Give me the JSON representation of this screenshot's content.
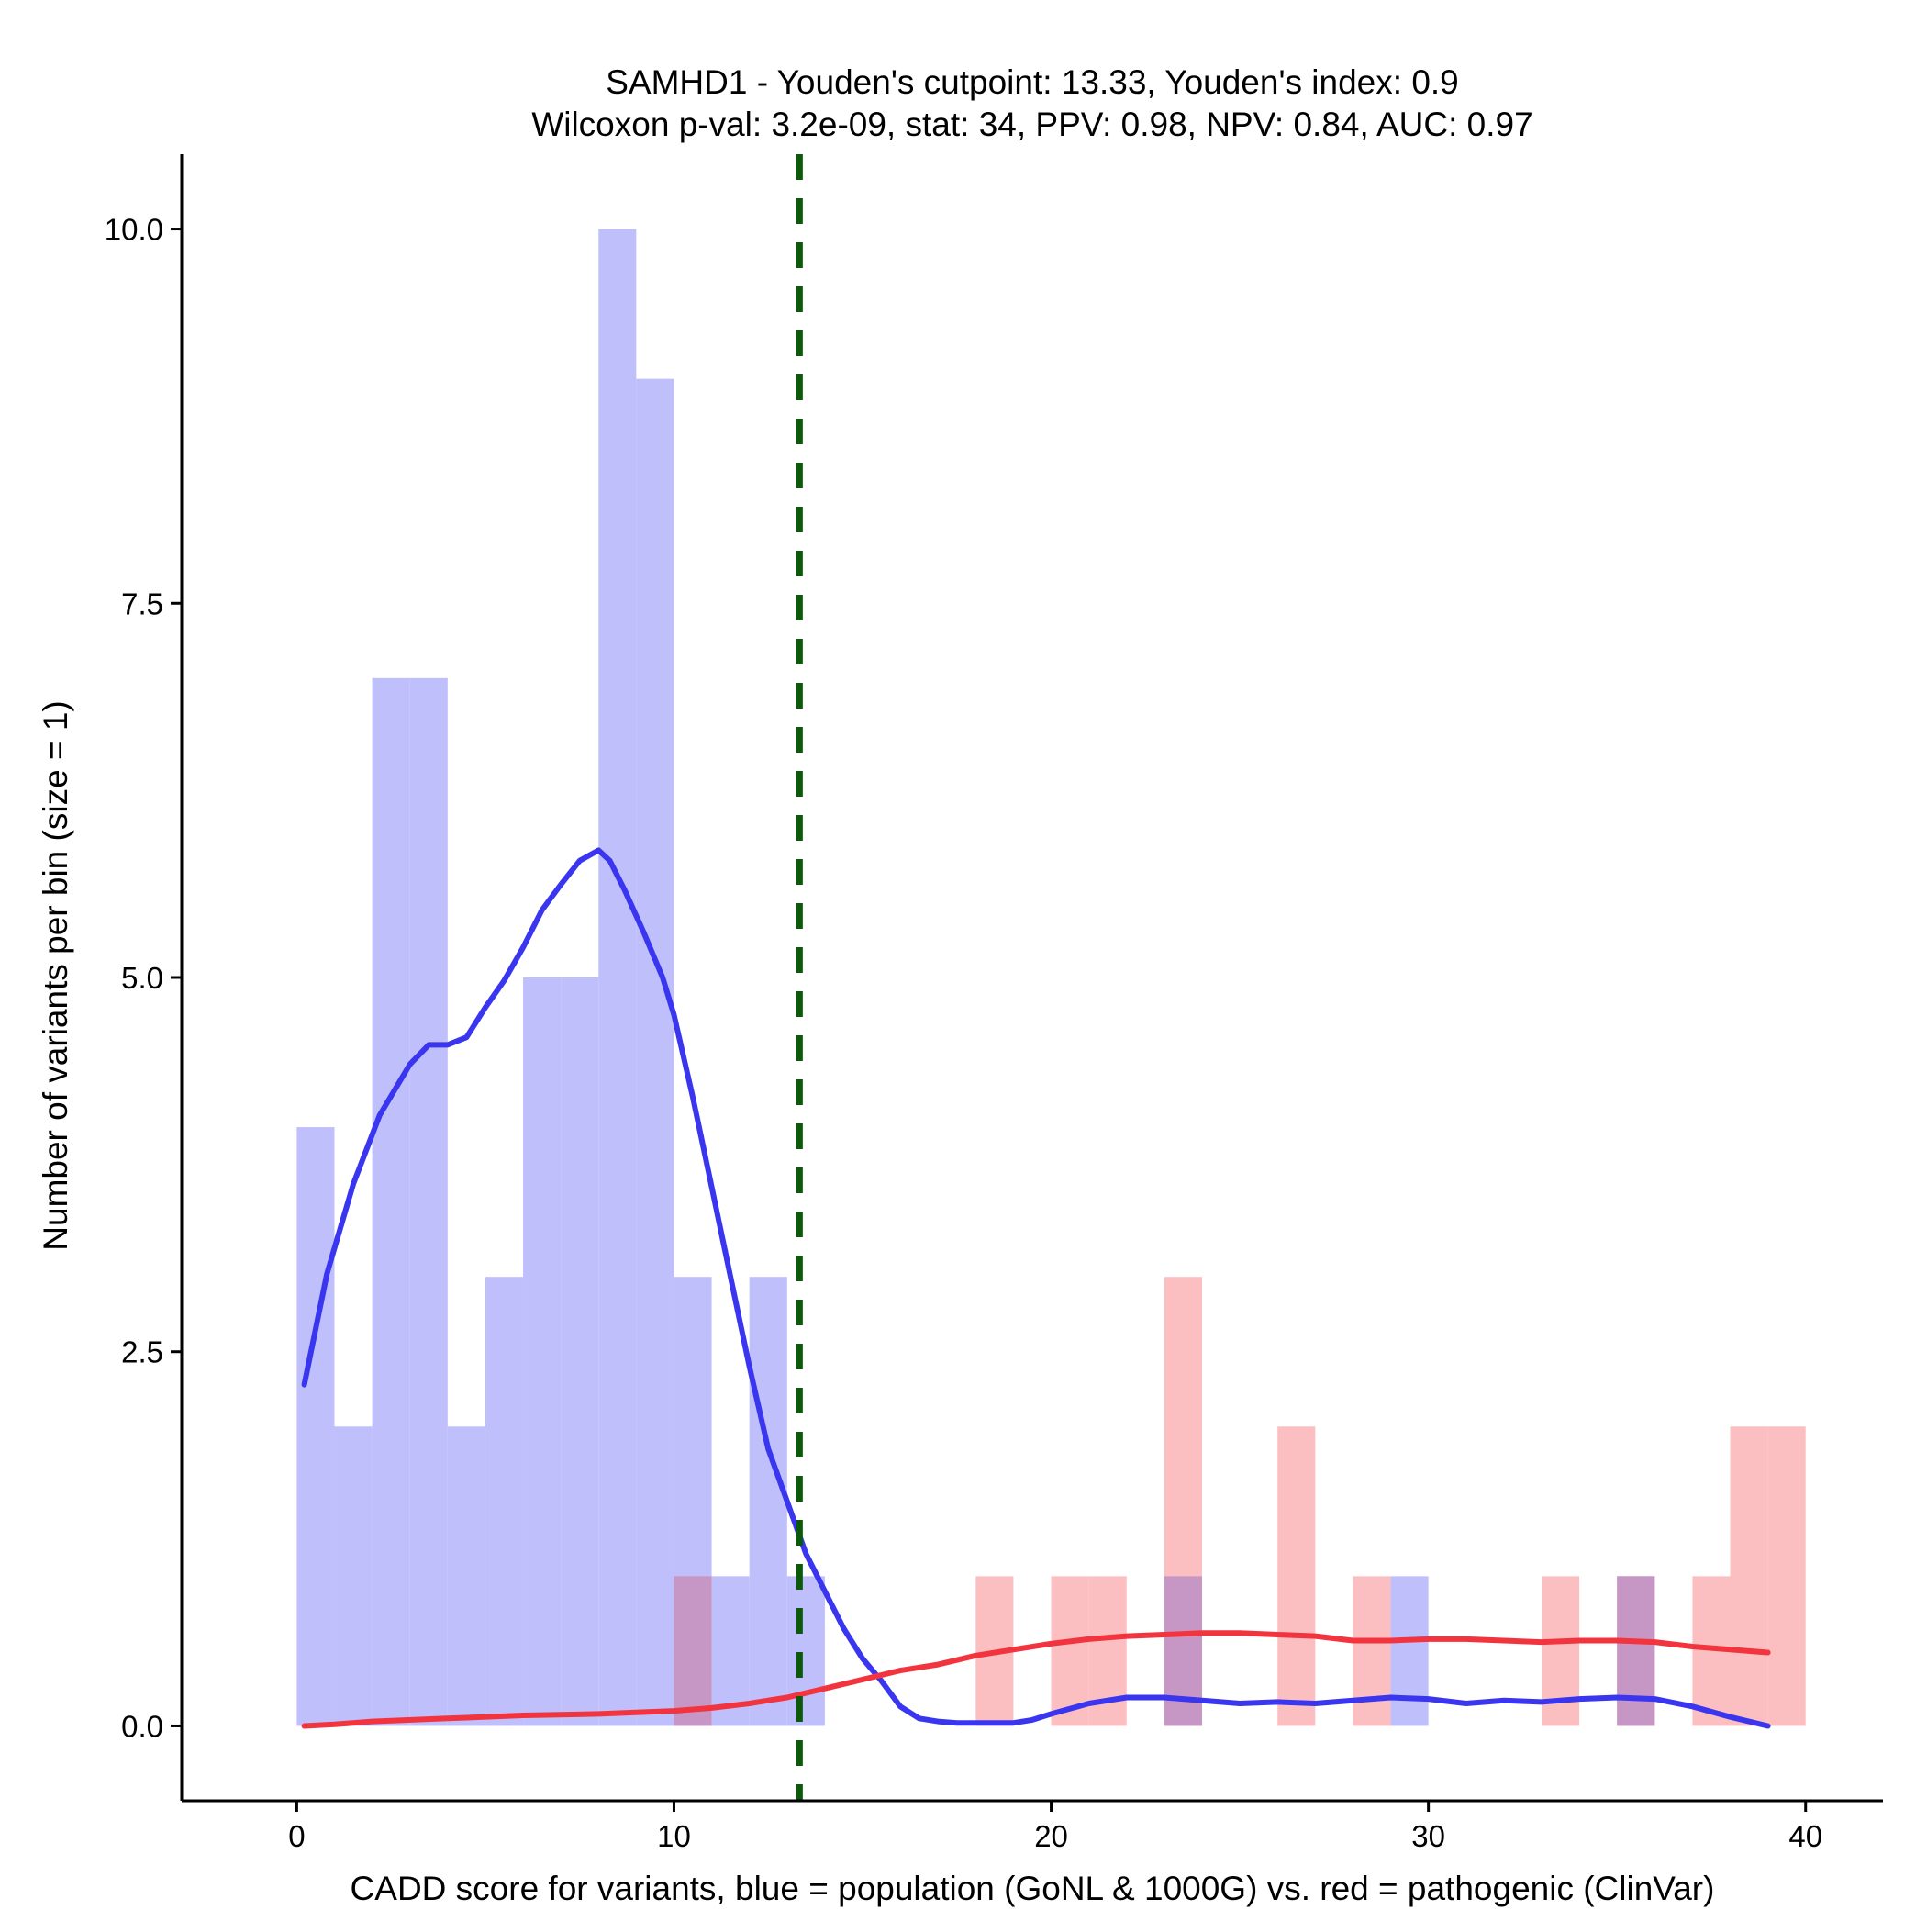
{
  "chart_data": {
    "type": "histogram",
    "title": "SAMHD1 - Youden's cutpoint: 13.33, Youden's index: 0.9",
    "subtitle": "Wilcoxon p-val: 3.2e-09, stat: 34, PPV: 0.98, NPV: 0.84, AUC: 0.97",
    "xlabel": "CADD score for variants, blue = population (GoNL & 1000G) vs. red = pathogenic (ClinVar)",
    "ylabel": "Number of variants per bin (size = 1)",
    "xlim": [
      -3.05,
      42.05
    ],
    "ylim": [
      -0.5,
      10.5
    ],
    "x_ticks": [
      0,
      10,
      20,
      30,
      40
    ],
    "x_tick_labels": [
      "0",
      "10",
      "20",
      "30",
      "40"
    ],
    "y_ticks": [
      0,
      2.5,
      5,
      7.5,
      10
    ],
    "y_tick_labels": [
      "0.0",
      "2.5",
      "5.0",
      "7.5",
      "10.0"
    ],
    "bin_width": 1,
    "cutpoint": 13.33,
    "colors": {
      "population_fill": "#bfbffc",
      "pathogenic_fill": "#fcbfc1",
      "overlap_fill": "#c696c4",
      "population_line": "#3a35ef",
      "pathogenic_line": "#f2343e",
      "cutpoint_line": "#0a5a0a",
      "axis": "#000000"
    },
    "series": [
      {
        "name": "population (GoNL & 1000G)",
        "bins": [
          {
            "start": 0,
            "count": 4
          },
          {
            "start": 1,
            "count": 2
          },
          {
            "start": 2,
            "count": 7
          },
          {
            "start": 3,
            "count": 7
          },
          {
            "start": 4,
            "count": 2
          },
          {
            "start": 5,
            "count": 3
          },
          {
            "start": 6,
            "count": 5
          },
          {
            "start": 7,
            "count": 5
          },
          {
            "start": 8,
            "count": 10
          },
          {
            "start": 9,
            "count": 9
          },
          {
            "start": 10,
            "count": 3
          },
          {
            "start": 11,
            "count": 1
          },
          {
            "start": 12,
            "count": 3
          },
          {
            "start": 13,
            "count": 1
          },
          {
            "start": 23,
            "count": 1
          },
          {
            "start": 29,
            "count": 1
          },
          {
            "start": 35,
            "count": 1
          }
        ],
        "density_scaled": {
          "x": [
            0.2,
            0.8,
            1.5,
            2.2,
            3.0,
            3.5,
            4.0,
            4.5,
            5.0,
            5.5,
            6.0,
            6.5,
            7.0,
            7.5,
            8.0,
            8.3,
            8.7,
            9.2,
            9.7,
            10.0,
            10.5,
            11.0,
            11.5,
            12.0,
            12.5,
            13.0,
            13.5,
            14.0,
            14.5,
            15.0,
            15.5,
            16.0,
            16.5,
            17.0,
            17.5,
            18.0,
            18.5,
            19.0,
            19.5,
            20.0,
            21.0,
            22.0,
            23.0,
            24.0,
            25.0,
            26.0,
            27.0,
            28.0,
            29.0,
            30.0,
            31.0,
            32.0,
            33.0,
            34.0,
            35.0,
            36.0,
            37.0,
            38.0,
            39.0
          ],
          "y": [
            2.28,
            3.02,
            3.62,
            4.08,
            4.42,
            4.55,
            4.55,
            4.6,
            4.8,
            4.98,
            5.2,
            5.45,
            5.62,
            5.78,
            5.85,
            5.78,
            5.58,
            5.3,
            5.0,
            4.75,
            4.2,
            3.6,
            3.0,
            2.4,
            1.85,
            1.5,
            1.15,
            0.9,
            0.65,
            0.45,
            0.3,
            0.13,
            0.05,
            0.03,
            0.02,
            0.02,
            0.02,
            0.02,
            0.04,
            0.08,
            0.15,
            0.19,
            0.19,
            0.17,
            0.15,
            0.16,
            0.15,
            0.17,
            0.19,
            0.18,
            0.15,
            0.17,
            0.16,
            0.18,
            0.19,
            0.18,
            0.13,
            0.06,
            0.0
          ]
        }
      },
      {
        "name": "pathogenic (ClinVar)",
        "bins": [
          {
            "start": 10,
            "count": 1
          },
          {
            "start": 18,
            "count": 1
          },
          {
            "start": 20,
            "count": 1
          },
          {
            "start": 21,
            "count": 1
          },
          {
            "start": 23,
            "count": 3
          },
          {
            "start": 26,
            "count": 2
          },
          {
            "start": 28,
            "count": 1
          },
          {
            "start": 33,
            "count": 1
          },
          {
            "start": 35,
            "count": 1
          },
          {
            "start": 37,
            "count": 1
          },
          {
            "start": 38,
            "count": 2
          },
          {
            "start": 39,
            "count": 2
          }
        ],
        "density_scaled": {
          "x": [
            0.2,
            1.0,
            2.0,
            4.0,
            6.0,
            8.0,
            9.0,
            10.0,
            11.0,
            12.0,
            12.5,
            13.0,
            13.5,
            14.0,
            14.5,
            15.0,
            15.5,
            16.0,
            16.5,
            17.0,
            17.5,
            18.0,
            19.0,
            20.0,
            21.0,
            22.0,
            23.0,
            24.0,
            25.0,
            26.0,
            27.0,
            28.0,
            29.0,
            30.0,
            31.0,
            32.0,
            33.0,
            34.0,
            35.0,
            36.0,
            37.0,
            38.0,
            39.0
          ],
          "y": [
            0.0,
            0.01,
            0.03,
            0.05,
            0.07,
            0.08,
            0.09,
            0.1,
            0.12,
            0.15,
            0.17,
            0.19,
            0.22,
            0.25,
            0.28,
            0.31,
            0.34,
            0.37,
            0.39,
            0.41,
            0.44,
            0.47,
            0.51,
            0.55,
            0.58,
            0.6,
            0.61,
            0.62,
            0.62,
            0.61,
            0.6,
            0.57,
            0.57,
            0.58,
            0.58,
            0.57,
            0.56,
            0.57,
            0.57,
            0.56,
            0.53,
            0.51,
            0.49
          ]
        }
      }
    ]
  }
}
